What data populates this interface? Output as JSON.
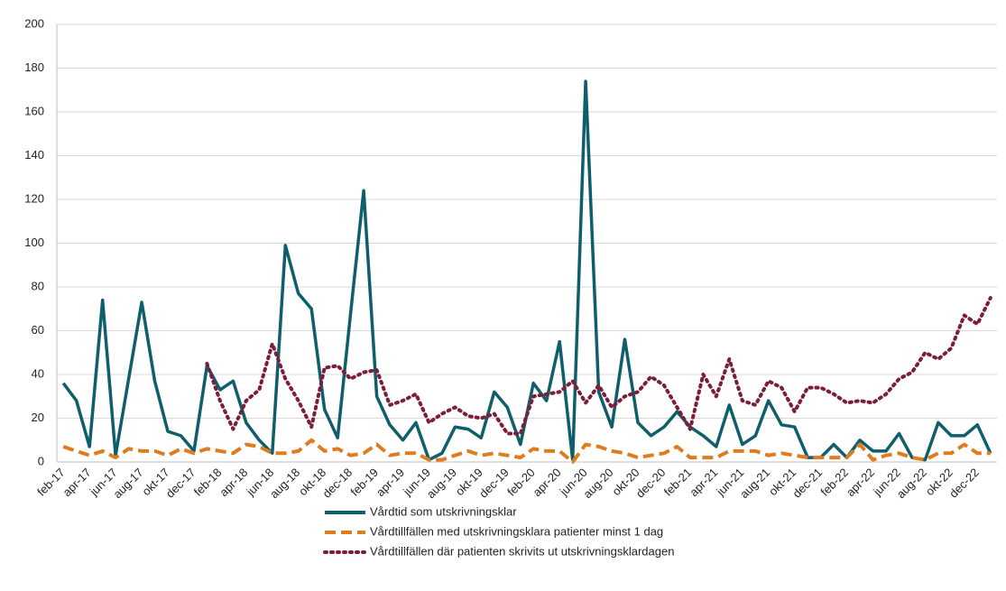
{
  "chart_data": {
    "type": "line",
    "categories": [
      "feb-17",
      null,
      "apr-17",
      null,
      "jun-17",
      null,
      "aug-17",
      null,
      "okt-17",
      null,
      "dec-17",
      null,
      "feb-18",
      null,
      "apr-18",
      null,
      "jun-18",
      null,
      "aug-18",
      null,
      "okt-18",
      null,
      "dec-18",
      null,
      "feb-19",
      null,
      "apr-19",
      null,
      "jun-19",
      null,
      "aug-19",
      null,
      "okt-19",
      null,
      "dec-19",
      null,
      "feb-20",
      null,
      "apr-20",
      null,
      "jun-20",
      null,
      "aug-20",
      null,
      "okt-20",
      null,
      "dec-20",
      null,
      "feb-21",
      null,
      "apr-21",
      null,
      "jun-21",
      null,
      "aug-21",
      null,
      "okt-21",
      null,
      "dec-21",
      null,
      "feb-22",
      null,
      "apr-22",
      null,
      "jun-22",
      null,
      "aug-22",
      null,
      "okt-22",
      null,
      "dec-22",
      null
    ],
    "series": [
      {
        "name": "Vårdtid som utskrivningsklar",
        "color": "#0f5e6b",
        "style": "solid",
        "values": [
          36,
          28,
          7,
          74,
          3,
          38,
          73,
          37,
          14,
          12,
          5,
          44,
          33,
          37,
          18,
          10,
          4,
          99,
          77,
          70,
          24,
          11,
          68,
          124,
          30,
          17,
          10,
          18,
          1,
          4,
          16,
          15,
          11,
          32,
          25,
          8,
          36,
          28,
          55,
          1,
          174,
          32,
          16,
          56,
          18,
          12,
          16,
          23,
          16,
          12,
          7,
          26,
          8,
          12,
          28,
          17,
          16,
          2,
          2,
          8,
          2,
          10,
          5,
          5,
          13,
          2,
          1,
          18,
          12,
          12,
          17,
          4
        ]
      },
      {
        "name": "Vårdtillfällen med utskrivningsklara patienter minst 1 dag",
        "color": "#e07b1f",
        "style": "dashed",
        "values": [
          7,
          5,
          3,
          5,
          2,
          6,
          5,
          5,
          3,
          6,
          4,
          6,
          5,
          4,
          8,
          7,
          4,
          4,
          5,
          10,
          5,
          6,
          3,
          4,
          8,
          3,
          4,
          4,
          1,
          1,
          3,
          5,
          3,
          4,
          3,
          2,
          6,
          5,
          5,
          0,
          8,
          7,
          5,
          4,
          2,
          3,
          4,
          7,
          2,
          2,
          2,
          5,
          5,
          5,
          3,
          4,
          3,
          2,
          2,
          2,
          2,
          8,
          1,
          3,
          4,
          2,
          1,
          4,
          4,
          8,
          4,
          4
        ]
      },
      {
        "name": "Vårdtillfällen där patienten skrivits ut utskrivningsklardagen",
        "color": "#7b1e3c",
        "style": "dotted",
        "values": [
          null,
          null,
          null,
          null,
          null,
          null,
          null,
          null,
          null,
          null,
          null,
          45,
          28,
          15,
          28,
          33,
          54,
          38,
          28,
          16,
          43,
          44,
          38,
          41,
          42,
          26,
          28,
          31,
          18,
          22,
          25,
          21,
          20,
          22,
          13,
          13,
          30,
          31,
          32,
          37,
          27,
          35,
          25,
          30,
          32,
          39,
          35,
          25,
          15,
          40,
          30,
          47,
          28,
          26,
          37,
          34,
          23,
          34,
          34,
          31,
          27,
          28,
          27,
          31,
          38,
          41,
          50,
          47,
          52,
          67,
          63,
          75
        ]
      }
    ],
    "ylim": [
      0,
      200
    ],
    "yticks": [
      0,
      20,
      40,
      60,
      80,
      100,
      120,
      140,
      160,
      180,
      200
    ],
    "grid": true,
    "legend": "bottom"
  }
}
